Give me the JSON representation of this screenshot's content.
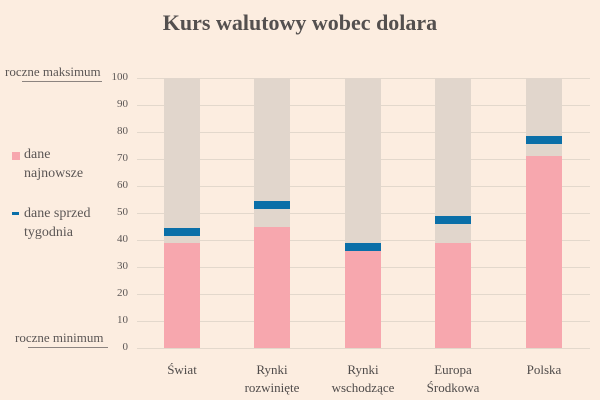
{
  "title": "Kurs walutowy wobec dolara",
  "labels": {
    "max": "roczne maksimum",
    "min": "roczne minimum"
  },
  "legend": {
    "now_line1": "dane",
    "now_line2": "najnowsze",
    "prev_line1": "dane sprzed",
    "prev_line2": "tygodnia"
  },
  "colors": {
    "background": "#fcede0",
    "range": "#e1d6cc",
    "latest": "#f7a7ae",
    "week_ago": "#0a6fa8"
  },
  "y_ticks": [
    "100",
    "90",
    "80",
    "70",
    "60",
    "50",
    "40",
    "30",
    "20",
    "10",
    "0"
  ],
  "categories": [
    {
      "line1": "Świat",
      "line2": ""
    },
    {
      "line1": "Rynki",
      "line2": "rozwinięte"
    },
    {
      "line1": "Rynki",
      "line2": "wschodzące"
    },
    {
      "line1": "Europa",
      "line2": "Środkowa"
    },
    {
      "line1": "Polska",
      "line2": ""
    }
  ],
  "chart_data": {
    "type": "bar",
    "title": "Kurs walutowy wobec dolara",
    "categories": [
      "Świat",
      "Rynki rozwinięte",
      "Rynki wschodzące",
      "Europa Środkowa",
      "Polska"
    ],
    "series": [
      {
        "name": "dane najnowsze",
        "values": [
          39,
          45,
          36,
          39,
          71
        ]
      },
      {
        "name": "dane sprzed tygodnia",
        "values": [
          43,
          53,
          37.5,
          47.5,
          77
        ]
      }
    ],
    "range": {
      "min_label": "roczne minimum",
      "max_label": "roczne maksimum",
      "min": 0,
      "max": 100
    },
    "xlabel": "",
    "ylabel": "",
    "ylim": [
      0,
      100
    ],
    "yticks": [
      0,
      10,
      20,
      30,
      40,
      50,
      60,
      70,
      80,
      90,
      100
    ],
    "grid": true,
    "legend_position": "left"
  }
}
